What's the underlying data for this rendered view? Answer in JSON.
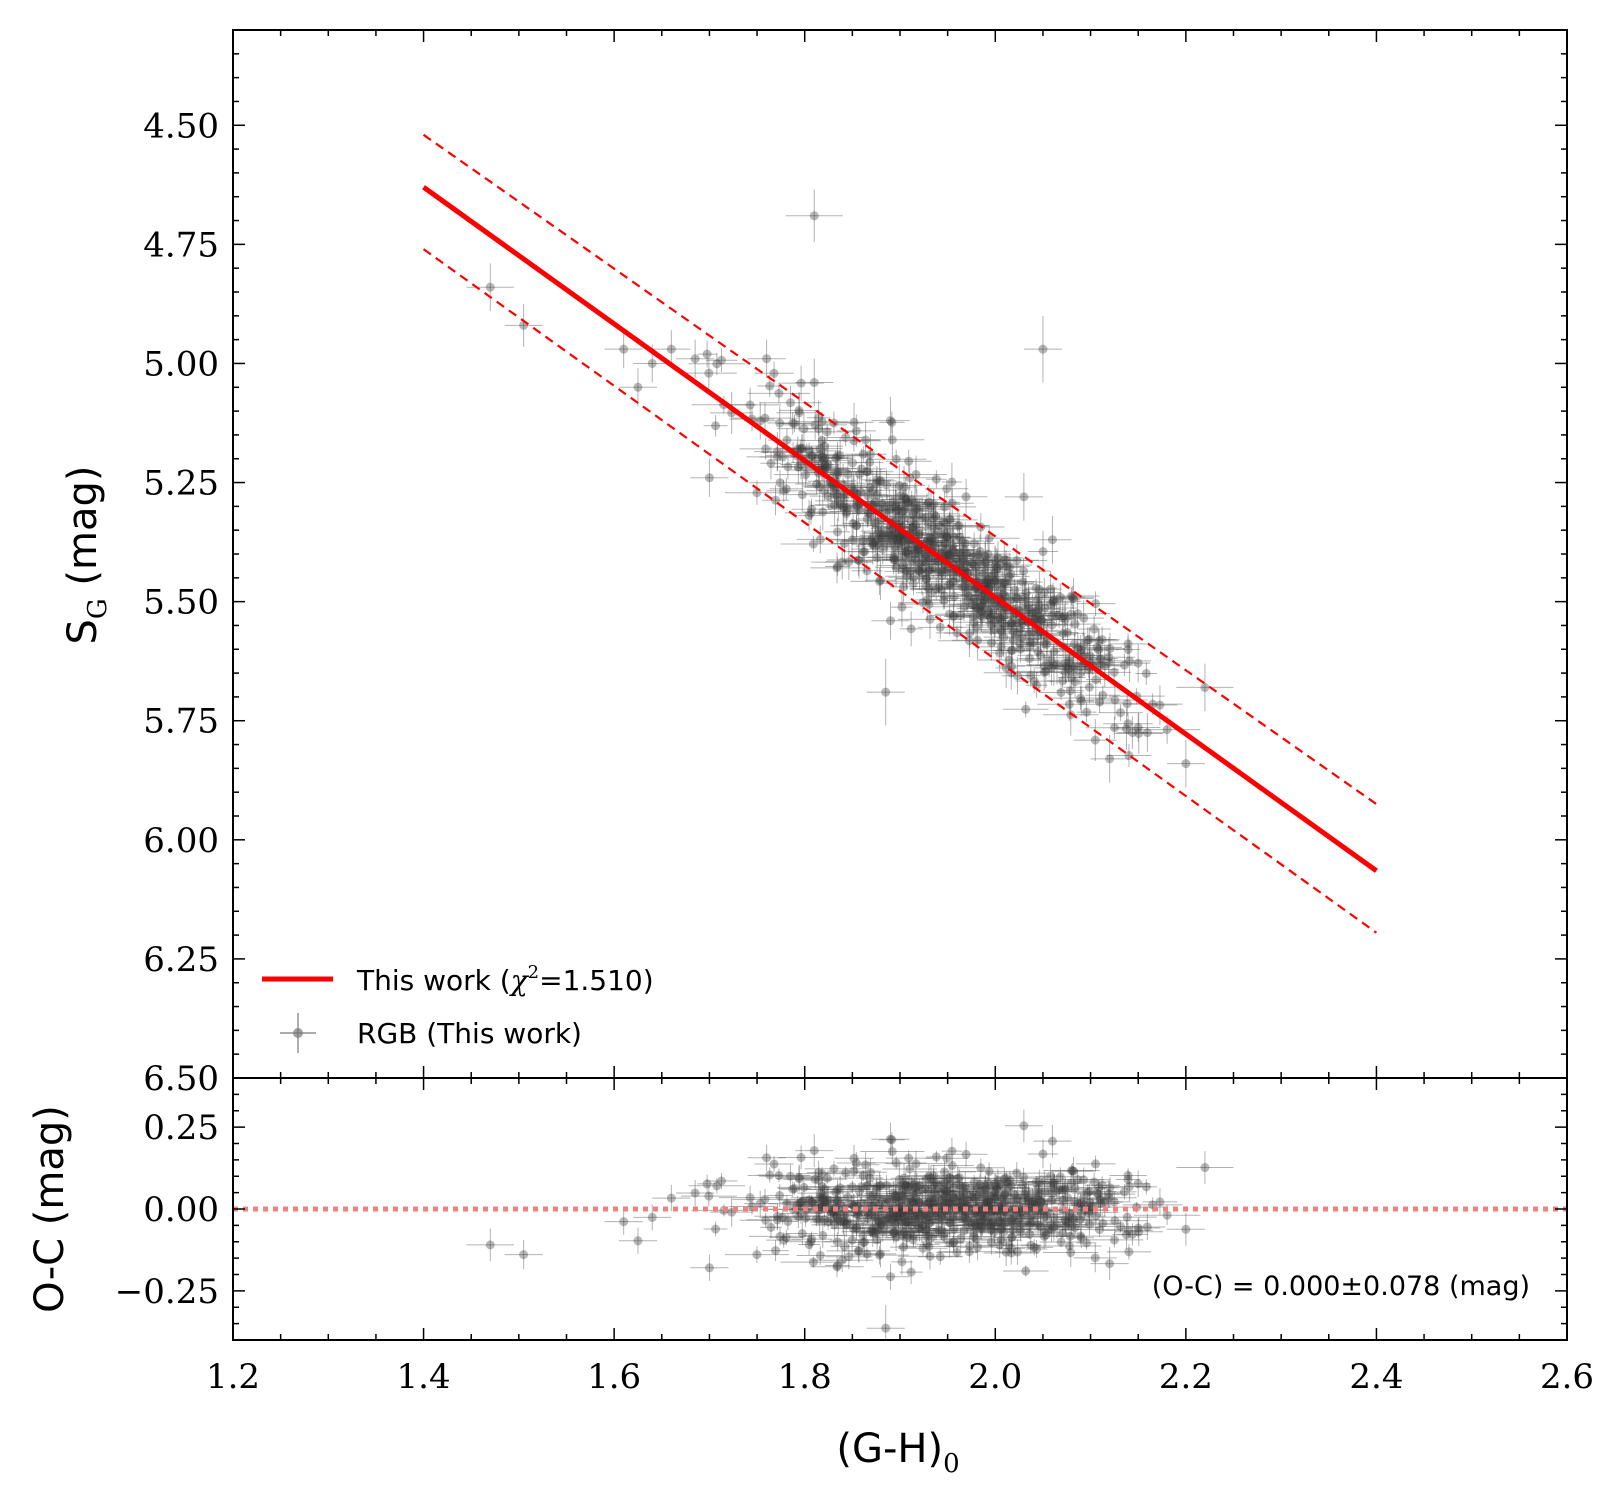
{
  "chart_data": [
    {
      "type": "scatter",
      "panel": "main",
      "ylabel": "S",
      "ylabel_sub": "G",
      "ylabel_unit": " (mag)",
      "xlim": [
        1.2,
        2.6
      ],
      "ylim": [
        6.5,
        4.3
      ],
      "y_inverted": true,
      "xticks": [
        1.2,
        1.4,
        1.6,
        1.8,
        2.0,
        2.2,
        2.4,
        2.6
      ],
      "yticks": [
        4.5,
        4.75,
        5.0,
        5.25,
        5.5,
        5.75,
        6.0,
        6.25,
        6.5
      ],
      "ytick_labels": [
        "4.50",
        "4.75",
        "5.00",
        "5.25",
        "5.50",
        "5.75",
        "6.00",
        "6.25",
        "6.50"
      ],
      "fit_line": {
        "name": "This work",
        "x": [
          1.4,
          2.4
        ],
        "y": [
          4.63,
          6.065
        ],
        "color": "#ff0000"
      },
      "band_upper": {
        "x": [
          1.4,
          2.4
        ],
        "y": [
          4.52,
          5.925
        ],
        "color": "#ff0000",
        "style": "dashed"
      },
      "band_lower": {
        "x": [
          1.4,
          2.4
        ],
        "y": [
          4.76,
          6.195
        ],
        "color": "#ff0000",
        "style": "dashed"
      },
      "series": [
        {
          "name": "RGB (This work)",
          "color": "#555555",
          "points": [
            {
              "x": 1.47,
              "y": 4.84,
              "ex": 0.025,
              "ey": 0.05
            },
            {
              "x": 1.505,
              "y": 4.92,
              "ex": 0.02,
              "ey": 0.045
            },
            {
              "x": 1.81,
              "y": 4.69,
              "ex": 0.03,
              "ey": 0.055
            },
            {
              "x": 2.05,
              "y": 4.97,
              "ex": 0.02,
              "ey": 0.07
            },
            {
              "x": 1.61,
              "y": 4.97,
              "ex": 0.02,
              "ey": 0.04
            },
            {
              "x": 1.625,
              "y": 5.05,
              "ex": 0.02,
              "ey": 0.04
            },
            {
              "x": 1.64,
              "y": 5.0,
              "ex": 0.02,
              "ey": 0.04
            },
            {
              "x": 1.66,
              "y": 4.97,
              "ex": 0.02,
              "ey": 0.04
            },
            {
              "x": 1.685,
              "y": 4.99,
              "ex": 0.02,
              "ey": 0.04
            },
            {
              "x": 1.76,
              "y": 4.99,
              "ex": 0.02,
              "ey": 0.04
            },
            {
              "x": 1.81,
              "y": 5.04,
              "ex": 0.02,
              "ey": 0.05
            },
            {
              "x": 1.89,
              "y": 5.12,
              "ex": 0.02,
              "ey": 0.05
            },
            {
              "x": 1.7,
              "y": 5.24,
              "ex": 0.02,
              "ey": 0.04
            },
            {
              "x": 1.885,
              "y": 5.69,
              "ex": 0.02,
              "ey": 0.07
            },
            {
              "x": 1.89,
              "y": 5.54,
              "ex": 0.02,
              "ey": 0.04
            },
            {
              "x": 2.2,
              "y": 5.84,
              "ex": 0.02,
              "ey": 0.05
            },
            {
              "x": 2.22,
              "y": 5.68,
              "ex": 0.03,
              "ey": 0.05
            },
            {
              "x": 2.12,
              "y": 5.83,
              "ex": 0.02,
              "ey": 0.05
            },
            {
              "x": 2.06,
              "y": 5.37,
              "ex": 0.02,
              "ey": 0.05
            },
            {
              "x": 2.03,
              "y": 5.28,
              "ex": 0.02,
              "ey": 0.05
            }
          ],
          "cloud": {
            "count": 720,
            "x_mean": 1.95,
            "x_sd": 0.095,
            "x_min": 1.66,
            "x_max": 2.19,
            "slope": 1.435,
            "intercept_at_1_4": 4.63,
            "scatter_sd": 0.065,
            "ex_range": [
              0.01,
              0.035
            ],
            "ey_range": [
              0.015,
              0.045
            ]
          }
        }
      ],
      "legend": {
        "placement": "lower-left",
        "entries": [
          {
            "label_main": "This work (",
            "label_chi": "χ",
            "label_sup": "2",
            "label_rest": "=1.510)",
            "kind": "line"
          },
          {
            "label": "RGB (This work)",
            "kind": "errorbar"
          }
        ]
      }
    },
    {
      "type": "scatter",
      "panel": "residual",
      "xlabel": "(G-H)",
      "xlabel_sub": "0",
      "ylabel": "O-C (mag)",
      "xlim": [
        1.2,
        2.6
      ],
      "ylim": [
        -0.4,
        0.4
      ],
      "xticks": [
        1.2,
        1.4,
        1.6,
        1.8,
        2.0,
        2.2,
        2.4,
        2.6
      ],
      "xtick_labels": [
        "1.2",
        "1.4",
        "1.6",
        "1.8",
        "2.0",
        "2.2",
        "2.4",
        "2.6"
      ],
      "yticks": [
        -0.25,
        0.0,
        0.25
      ],
      "ytick_labels": [
        "−0.25",
        "0.00",
        "0.25"
      ],
      "zero_line": {
        "y": 0.0,
        "color": "#f08080",
        "style": "dotted"
      },
      "annotation": "(O-C) = 0.000±0.078 (mag)",
      "mean": 0.0,
      "std": 0.078
    }
  ]
}
